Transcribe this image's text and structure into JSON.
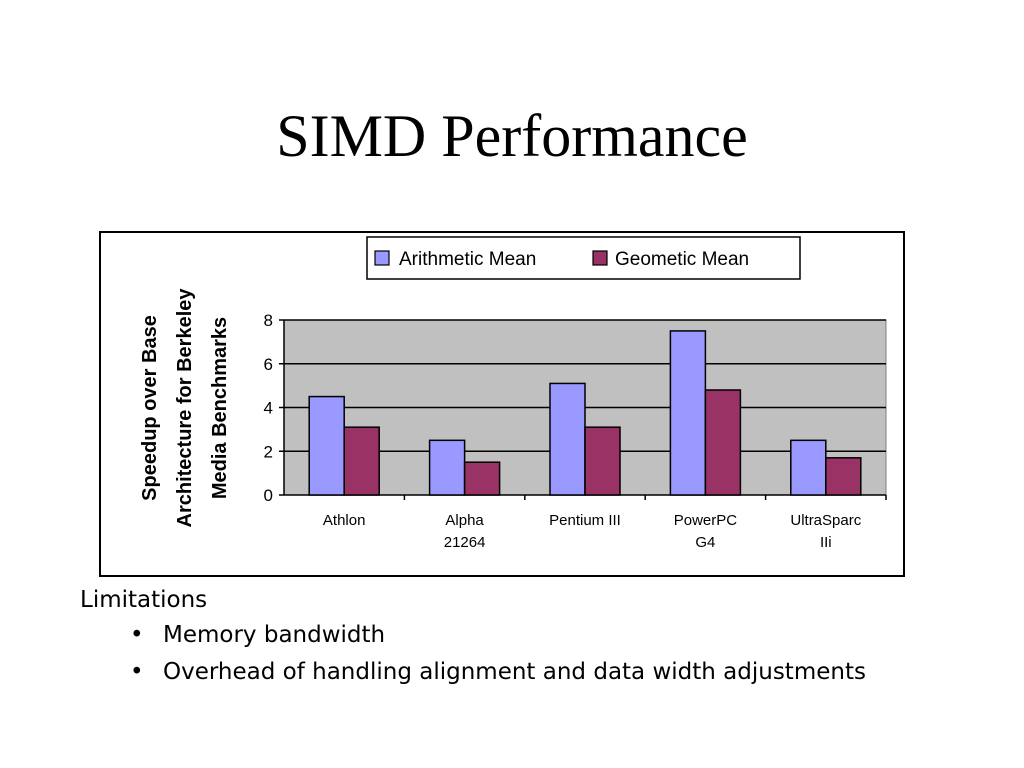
{
  "slide": {
    "title": "SIMD Performance"
  },
  "chart_data": {
    "type": "bar",
    "categories": [
      [
        "Athlon"
      ],
      [
        "Alpha",
        "21264"
      ],
      [
        "Pentium III"
      ],
      [
        "PowerPC",
        "G4"
      ],
      [
        "UltraSparc",
        "IIi"
      ]
    ],
    "series": [
      {
        "name": "Arithmetic Mean",
        "values": [
          4.5,
          2.5,
          5.1,
          7.5,
          2.5
        ],
        "color": "#9999ff"
      },
      {
        "name": "Geometic Mean",
        "values": [
          3.1,
          1.5,
          3.1,
          4.8,
          1.7
        ],
        "color": "#993366"
      }
    ],
    "ylabel_lines": [
      "Speedup over Base",
      "Architecture for Berkeley",
      "Media Benchmarks"
    ],
    "yticks": [
      "0",
      "2",
      "4",
      "6",
      "8"
    ],
    "ylim": [
      0,
      8
    ],
    "plot_background": "#c0c0c0",
    "grid": true,
    "legend_position": "top"
  },
  "notes": {
    "heading": "Limitations",
    "bullet_glyph": "•",
    "items": [
      "Memory bandwidth",
      "Overhead of handling alignment and data width adjustments"
    ]
  }
}
